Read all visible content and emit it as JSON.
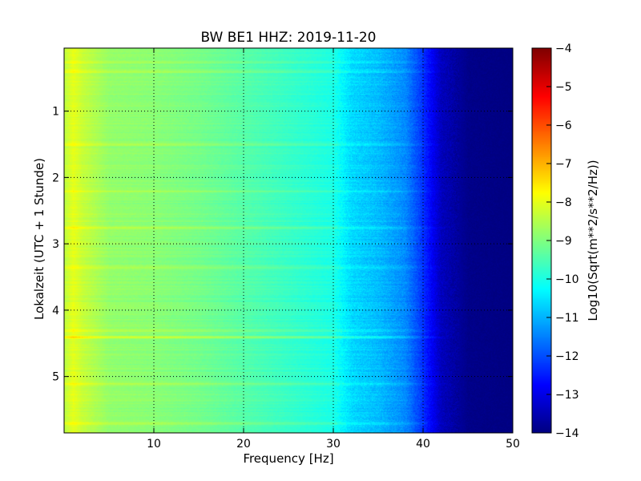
{
  "chart_data": {
    "type": "heatmap",
    "title": "BW BE1 HHZ: 2019-11-20",
    "xlabel": "Frequency [Hz]",
    "ylabel": "Lokalzeit (UTC + 1 Stunde)",
    "colorbar_label": "Log10(Sqrt(m**2/s**2/Hz))",
    "colormap": "jet",
    "xlim": [
      0,
      50
    ],
    "ylim_top_to_bottom": [
      0.05,
      5.85
    ],
    "y_inverted": true,
    "clim": [
      -14,
      -4
    ],
    "grid": true,
    "x_ticks": [
      10,
      20,
      30,
      40,
      50
    ],
    "x_tick_labels": [
      "10",
      "20",
      "30",
      "40",
      "50"
    ],
    "y_ticks": [
      1,
      2,
      3,
      4,
      5
    ],
    "y_tick_labels": [
      "1",
      "2",
      "3",
      "4",
      "5"
    ],
    "cbar_ticks": [
      -4,
      -5,
      -6,
      -7,
      -8,
      -9,
      -10,
      -11,
      -12,
      -13,
      -14
    ],
    "cbar_tick_labels": [
      "−4",
      "−5",
      "−6",
      "−7",
      "−8",
      "−9",
      "−10",
      "−11",
      "−12",
      "−13",
      "−14"
    ],
    "spectrum_profile": {
      "frequency_hz": [
        0,
        1,
        2,
        5,
        10,
        15,
        20,
        25,
        30,
        32,
        35,
        38,
        40,
        42,
        45,
        50
      ],
      "log10_psd": [
        -8.4,
        -8.0,
        -8.3,
        -8.8,
        -8.9,
        -9.1,
        -9.4,
        -9.7,
        -10.0,
        -10.6,
        -10.9,
        -11.4,
        -12.3,
        -13.4,
        -13.9,
        -14.0
      ]
    },
    "noise_bands": [
      {
        "time_h": 0.25,
        "log10_offset": 0.3
      },
      {
        "time_h": 0.4,
        "log10_offset": 0.4
      },
      {
        "time_h": 1.5,
        "log10_offset": 0.3
      },
      {
        "time_h": 2.2,
        "log10_offset": 0.35
      },
      {
        "time_h": 2.75,
        "log10_offset": 0.4
      },
      {
        "time_h": 3.35,
        "log10_offset": 0.45
      },
      {
        "time_h": 4.3,
        "log10_offset": 0.5
      },
      {
        "time_h": 4.4,
        "log10_offset": 0.8
      },
      {
        "time_h": 5.1,
        "log10_offset": 0.4
      },
      {
        "time_h": 5.7,
        "log10_offset": 0.35
      }
    ]
  }
}
